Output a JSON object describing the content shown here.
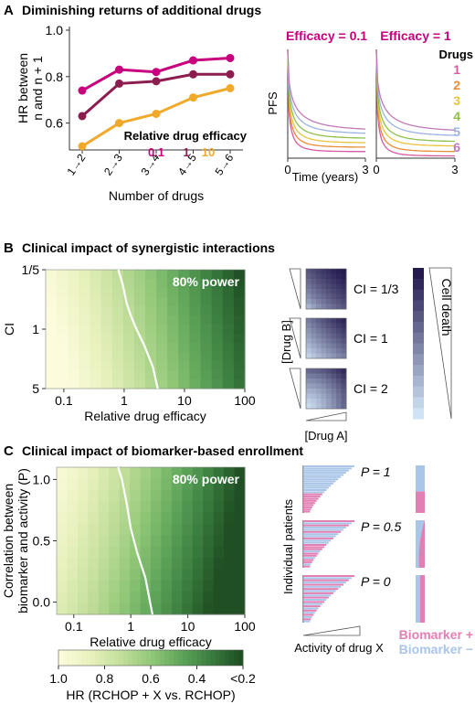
{
  "panels": {
    "a": {
      "letter": "A",
      "title": "Diminishing returns of additional drugs"
    },
    "b": {
      "letter": "B",
      "title": "Clinical impact of synergistic interactions"
    },
    "c": {
      "letter": "C",
      "title": "Clinical impact of biomarker-based enrollment"
    }
  },
  "colors": {
    "mag": "#c8007d",
    "maroon": "#8b1e4e",
    "orange": "#f0a92a",
    "heatLow": "#fcfbdc",
    "heatHigh": "#1f4f23",
    "contour": "#ffffff",
    "bioPlus": "#e27fb4",
    "bioMinus": "#a9c5e8",
    "cellLight": "#cfe3f5",
    "cellDark": "#241a4e"
  },
  "chart_data": [
    {
      "id": "a1",
      "type": "line",
      "title": "",
      "xlabel": "Number of drugs",
      "ylabel": [
        "HR between",
        "n and n + 1"
      ],
      "categories": [
        "1→2",
        "2→3",
        "3→4",
        "4→5",
        "5→6"
      ],
      "ylim": [
        0.5,
        1.0
      ],
      "yticks": [
        "0.6",
        "0.8",
        "1.0"
      ],
      "yticks_v": [
        0.6,
        0.8,
        1.0
      ],
      "legend_title": "Relative drug efficacy",
      "series": [
        {
          "name": "0.1",
          "color": "#c8007d",
          "values": [
            0.74,
            0.83,
            0.82,
            0.87,
            0.88
          ]
        },
        {
          "name": "1",
          "color": "#8b1e4e",
          "values": [
            0.63,
            0.77,
            0.78,
            0.81,
            0.81
          ]
        },
        {
          "name": "10",
          "color": "#f0a92a",
          "values": [
            0.5,
            0.6,
            0.64,
            0.71,
            0.75
          ]
        }
      ]
    },
    {
      "id": "a2",
      "type": "line",
      "ylabel": "PFS",
      "xlabel": "Time (years)",
      "xticks": [
        "0",
        "3"
      ],
      "xlim": [
        0,
        3
      ],
      "ylim": [
        0,
        1
      ],
      "panel_labels": [
        "Efficacy = 0.1",
        "Efficacy = 1"
      ],
      "legend_title": "Drugs",
      "series": [
        {
          "name": "1",
          "color": "#d85aa6",
          "plateau": [
            0.06,
            0.02
          ]
        },
        {
          "name": "2",
          "color": "#e98d3a",
          "plateau": [
            0.1,
            0.06
          ]
        },
        {
          "name": "3",
          "color": "#e9c43a",
          "plateau": [
            0.14,
            0.11
          ]
        },
        {
          "name": "4",
          "color": "#8ec04a",
          "plateau": [
            0.18,
            0.15
          ]
        },
        {
          "name": "5",
          "color": "#9ab3e0",
          "plateau": [
            0.22,
            0.2
          ]
        },
        {
          "name": "6",
          "color": "#c07ab8",
          "plateau": [
            0.25,
            0.24
          ]
        }
      ]
    },
    {
      "id": "b1",
      "type": "heatmap",
      "xlabel": "Relative drug efficacy",
      "ylabel": "CI",
      "xticks": [
        "0.1",
        "1",
        "10",
        "100"
      ],
      "xticks_v": [
        0.1,
        1,
        10,
        100
      ],
      "xscale": "log",
      "xlim": [
        0.05,
        100
      ],
      "yticks": [
        "1/5",
        "1",
        "5"
      ],
      "yticks_v": [
        0.2,
        1,
        5
      ],
      "yscale": "log",
      "ylim": [
        0.2,
        5
      ],
      "annotation": "80% power",
      "contour": [
        [
          0.8,
          0.2
        ],
        [
          0.95,
          0.3
        ],
        [
          1.1,
          0.5
        ],
        [
          1.3,
          0.7
        ],
        [
          1.6,
          1.0
        ],
        [
          2.2,
          1.6
        ],
        [
          3.0,
          2.8
        ],
        [
          3.6,
          5
        ]
      ]
    },
    {
      "id": "b2",
      "type": "heatmap",
      "xlabel": "[Drug A]",
      "ylabel": "[Drug B]",
      "panels": [
        {
          "label": "CI = 1/3",
          "ci": 0.333
        },
        {
          "label": "CI = 1",
          "ci": 1
        },
        {
          "label": "CI = 2",
          "ci": 2
        }
      ],
      "legend_title": "Cell death"
    },
    {
      "id": "c1",
      "type": "heatmap",
      "xlabel": "Relative drug efficacy",
      "ylabel": [
        "Correlation between",
        "biomarker and activity (P)"
      ],
      "xticks": [
        "0.1",
        "1",
        "10",
        "100"
      ],
      "xticks_v": [
        0.1,
        1,
        10,
        100
      ],
      "xscale": "log",
      "xlim": [
        0.05,
        100
      ],
      "yticks": [
        "0.0",
        "0.5",
        "1.0"
      ],
      "yticks_v": [
        0,
        0.5,
        1
      ],
      "ylim": [
        -0.1,
        1.1
      ],
      "annotation": "80% power",
      "contour": [
        [
          0.6,
          1.1
        ],
        [
          0.7,
          1.0
        ],
        [
          0.85,
          0.8
        ],
        [
          1.0,
          0.6
        ],
        [
          1.3,
          0.4
        ],
        [
          1.8,
          0.2
        ],
        [
          2.4,
          -0.1
        ]
      ]
    },
    {
      "id": "c2",
      "type": "bar",
      "ylabel": "Individual patients",
      "xlabel": "Activity of drug X",
      "panels": [
        {
          "label": "P = 1",
          "p": 1
        },
        {
          "label": "P = 0.5",
          "p": 0.5
        },
        {
          "label": "P = 0",
          "p": 0
        }
      ],
      "legend": [
        "Biomarker +",
        "Biomarker −"
      ]
    },
    {
      "id": "cbar",
      "type": "heatmap",
      "xlabel": "HR (RCHOP + X vs. RCHOP)",
      "ticks": [
        "1.0",
        "0.8",
        "0.6",
        "0.4",
        "<0.2"
      ],
      "ticks_v": [
        1.0,
        0.8,
        0.6,
        0.4,
        0.2
      ],
      "range": [
        1.0,
        0.2
      ]
    }
  ]
}
